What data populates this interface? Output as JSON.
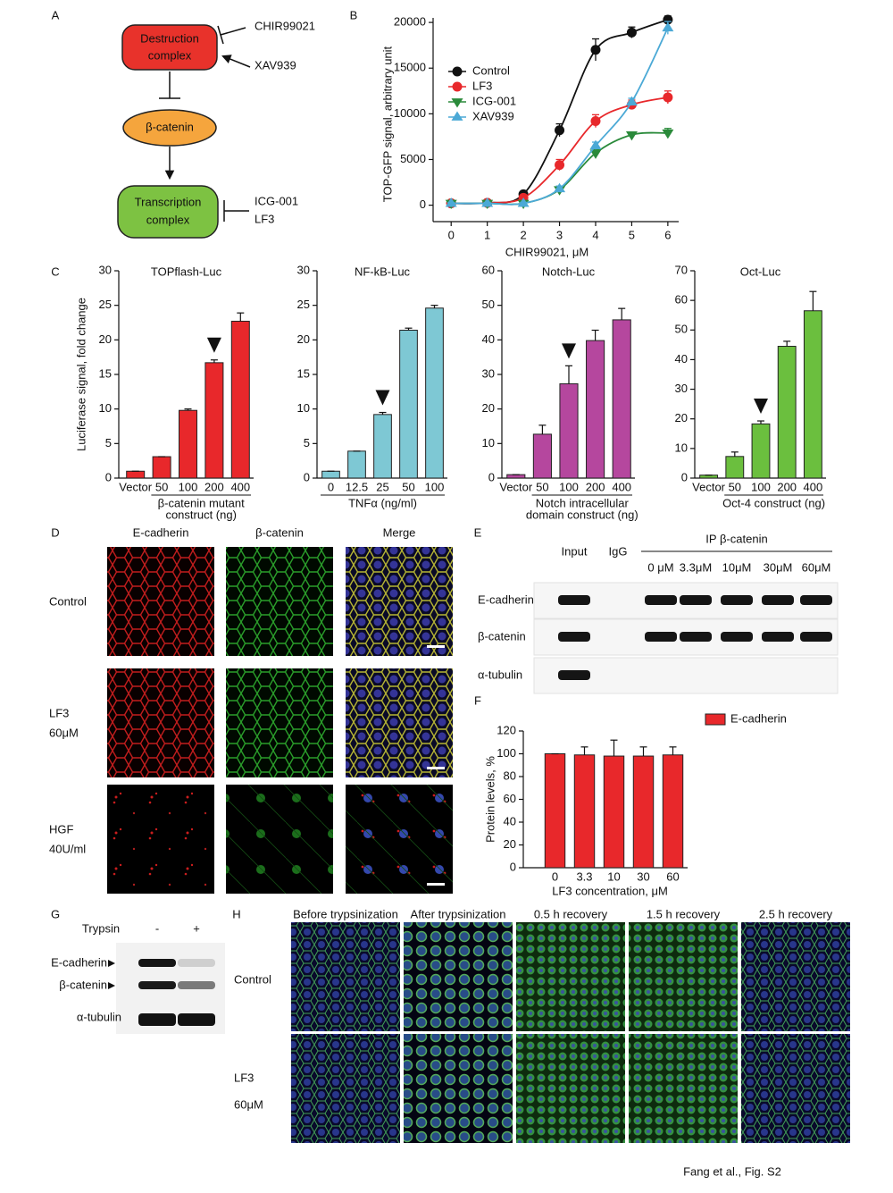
{
  "panel_labels": [
    "A",
    "B",
    "C",
    "D",
    "E",
    "F",
    "G",
    "H"
  ],
  "panel_a": {
    "destruction_complex": [
      "Destruction",
      "complex"
    ],
    "chir": "CHIR99021",
    "xav": "XAV939",
    "beta_catenin": "β-catenin",
    "transcription_complex": [
      "Transcription",
      "complex"
    ],
    "icg": "ICG-001",
    "lf3": "LF3"
  },
  "panel_d": {
    "columns": [
      "E-cadherin",
      "β-catenin",
      "Merge"
    ],
    "rows": [
      [
        "Control"
      ],
      [
        "LF3",
        "60μM"
      ],
      [
        "HGF",
        "40U/ml"
      ]
    ]
  },
  "panel_e": {
    "input": "Input",
    "igg": "IgG",
    "ip": "IP β-catenin",
    "concentrations": [
      "0 μM",
      "3.3μM",
      "10μM",
      "30μM",
      "60μM"
    ],
    "rows": [
      "E-cadherin",
      "β-catenin",
      "α-tubulin"
    ]
  },
  "panel_g": {
    "treatment": "Trypsin",
    "conditions": [
      "-",
      "+"
    ],
    "rows": [
      "E-cadherin",
      "β-catenin",
      "α-tubulin"
    ]
  },
  "panel_h": {
    "columns": [
      "Before trypsinization",
      "After trypsinization",
      "0.5 h recovery",
      "1.5 h recovery",
      "2.5 h recovery"
    ],
    "rows": [
      [
        "Control"
      ],
      [
        "LF3",
        "60μM"
      ]
    ]
  },
  "footer": "Fang et al., Fig. S2",
  "chart_data": [
    {
      "type": "line",
      "ylabel": "TOP-GFP signal, arbitrary unit",
      "xlabel": "CHIR99021, μM",
      "x": [
        0,
        1,
        2,
        3,
        4,
        5,
        6
      ],
      "xlim": [
        -0.5,
        6.3
      ],
      "xticks": [
        0,
        1,
        2,
        3,
        4,
        5,
        6
      ],
      "ylim": [
        -1800,
        20500
      ],
      "yticks": [
        0,
        5000,
        10000,
        15000,
        20000
      ],
      "legend": "upper left",
      "series": [
        {
          "name": "Control",
          "color": "#111111",
          "marker": "circle",
          "values": [
            200,
            250,
            1200,
            8200,
            17000,
            18900,
            20300
          ],
          "errors": [
            200,
            200,
            300,
            700,
            1200,
            600,
            400
          ]
        },
        {
          "name": "LF3",
          "color": "#e8282b",
          "marker": "circle",
          "values": [
            200,
            250,
            800,
            4400,
            9200,
            11000,
            11800
          ],
          "errors": [
            150,
            150,
            200,
            600,
            700,
            500,
            700
          ]
        },
        {
          "name": "ICG-001",
          "color": "#2a8a3a",
          "marker": "triangle-down",
          "values": [
            200,
            200,
            200,
            1700,
            5700,
            7700,
            7900
          ],
          "errors": [
            100,
            100,
            100,
            300,
            400,
            300,
            500
          ]
        },
        {
          "name": "XAV939",
          "color": "#4ba9d6",
          "marker": "triangle-up",
          "values": [
            200,
            200,
            200,
            1800,
            6500,
            11300,
            19400
          ],
          "errors": [
            100,
            100,
            100,
            300,
            400,
            400,
            700
          ]
        }
      ]
    },
    {
      "type": "bar",
      "title": "TOPflash-Luc",
      "ylabel": "Luciferase signal, fold change",
      "categories": [
        "Vector",
        "50",
        "100",
        "200",
        "400"
      ],
      "values": [
        1,
        3.1,
        9.8,
        16.7,
        22.7
      ],
      "errors": [
        0,
        0,
        0.2,
        0.4,
        1.2
      ],
      "color": "#e8282b",
      "ylim": [
        0,
        30
      ],
      "yticks": [
        0,
        5,
        10,
        15,
        20,
        25,
        30
      ],
      "group_label": [
        "β-catenin mutant",
        "construct (ng)"
      ],
      "highlight": 3
    },
    {
      "type": "bar",
      "title": "NF-kB-Luc",
      "categories": [
        "0",
        "12.5",
        "25",
        "50",
        "100"
      ],
      "values": [
        1,
        3.9,
        9.2,
        21.4,
        24.6
      ],
      "errors": [
        0,
        0,
        0.3,
        0.3,
        0.4
      ],
      "color": "#7ec8d4",
      "ylim": [
        0,
        30
      ],
      "yticks": [
        0,
        5,
        10,
        15,
        20,
        25,
        30
      ],
      "group_label": [
        "TNFα (ng/ml)"
      ],
      "highlight": 2
    },
    {
      "type": "bar",
      "title": "Notch-Luc",
      "categories": [
        "Vector",
        "50",
        "100",
        "200",
        "400"
      ],
      "values": [
        1,
        12.7,
        27.3,
        39.8,
        45.8
      ],
      "errors": [
        0,
        2.6,
        5.2,
        3,
        3.3
      ],
      "color": "#b5479e",
      "ylim": [
        0,
        60
      ],
      "yticks": [
        0,
        10,
        20,
        30,
        40,
        50,
        60
      ],
      "group_label": [
        "Notch intracellular",
        "domain construct (ng)"
      ],
      "highlight": 2
    },
    {
      "type": "bar",
      "title": "Oct-Luc",
      "categories": [
        "Vector",
        "50",
        "100",
        "200",
        "400"
      ],
      "values": [
        1,
        7.3,
        18.3,
        44.5,
        56.5
      ],
      "errors": [
        0,
        1.5,
        1,
        1.7,
        6.5
      ],
      "color": "#6bbf3e",
      "ylim": [
        0,
        70
      ],
      "yticks": [
        0,
        10,
        20,
        30,
        40,
        50,
        60,
        70
      ],
      "group_label": [
        "Oct-4 construct (ng)"
      ],
      "highlight": 2
    },
    {
      "type": "bar",
      "ylabel": "Protein levels, %",
      "xlabel": "LF3 concentration, μM",
      "categories": [
        "0",
        "3.3",
        "10",
        "30",
        "60"
      ],
      "series": [
        {
          "name": "E-cadherin",
          "color": "#e8282b",
          "values": [
            100,
            99,
            98,
            98,
            99
          ],
          "errors": [
            0,
            7,
            14,
            8,
            7
          ]
        }
      ],
      "ylim": [
        0,
        120
      ],
      "yticks": [
        0,
        20,
        40,
        60,
        80,
        100,
        120
      ],
      "legend": "upper right"
    }
  ]
}
